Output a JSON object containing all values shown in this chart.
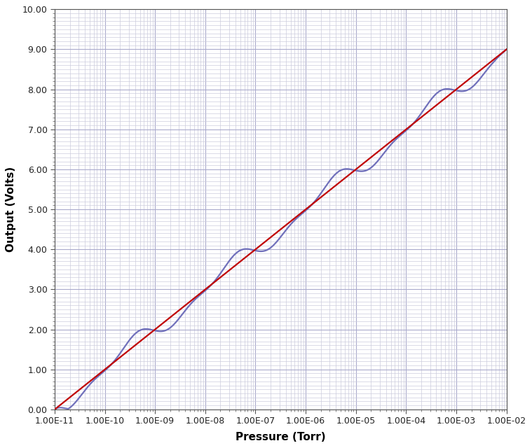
{
  "title": "",
  "xlabel": "Pressure (Torr)",
  "ylabel": "Output (Volts)",
  "xmin": 1e-11,
  "xmax": 0.01,
  "ymin": 0.0,
  "ymax": 10.0,
  "yticks": [
    0.0,
    1.0,
    2.0,
    3.0,
    4.0,
    5.0,
    6.0,
    7.0,
    8.0,
    9.0,
    10.0
  ],
  "xtick_labels": [
    "1.00E-11",
    "1.00E-10",
    "1.00E-09",
    "1.00E-08",
    "1.00E-07",
    "1.00E-06",
    "1.00E-05",
    "1.00E-04",
    "1.00E-03",
    "1.00E-02"
  ],
  "red_color": "#C00000",
  "blue_color": "#7070BB",
  "background_color": "#FFFFFF",
  "grid_major_color": "#AAAACC",
  "grid_minor_color": "#CCCCDD",
  "line_width": 1.6,
  "fig_width": 7.59,
  "fig_height": 6.4,
  "dpi": 100,
  "xlabel_fontsize": 11,
  "ylabel_fontsize": 11,
  "tick_fontsize": 9
}
